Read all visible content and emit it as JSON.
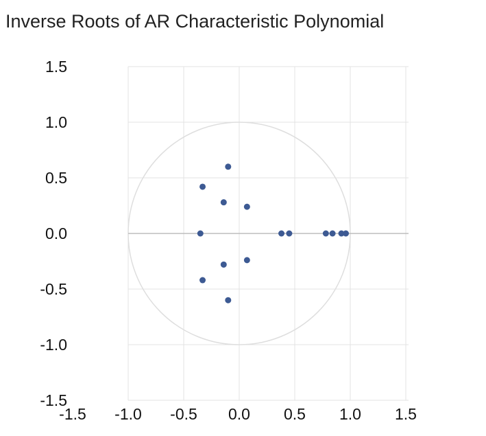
{
  "chart_data": {
    "type": "scatter",
    "title": "Inverse Roots of AR Characteristic Polynomial",
    "xlabel": "",
    "ylabel": "",
    "xlim": [
      -1.5,
      1.5
    ],
    "ylim": [
      -1.5,
      1.5
    ],
    "xticks": [
      "-1.5",
      "-1.0",
      "-0.5",
      "0.0",
      "0.5",
      "1.0",
      "1.5"
    ],
    "yticks": [
      "1.5",
      "1.0",
      "0.5",
      "0.0",
      "-0.5",
      "-1.0",
      "-1.5"
    ],
    "grid": true,
    "unit_circle": true,
    "marker_color": "#3d5a93",
    "points": [
      {
        "x": -0.1,
        "y": 0.6
      },
      {
        "x": -0.33,
        "y": 0.42
      },
      {
        "x": -0.14,
        "y": 0.28
      },
      {
        "x": 0.07,
        "y": 0.24
      },
      {
        "x": -0.35,
        "y": 0.0
      },
      {
        "x": 0.38,
        "y": 0.0
      },
      {
        "x": 0.45,
        "y": 0.0
      },
      {
        "x": 0.78,
        "y": 0.0
      },
      {
        "x": 0.84,
        "y": 0.0
      },
      {
        "x": 0.92,
        "y": 0.0
      },
      {
        "x": 0.96,
        "y": 0.0
      },
      {
        "x": -0.14,
        "y": -0.28
      },
      {
        "x": 0.07,
        "y": -0.24
      },
      {
        "x": -0.33,
        "y": -0.42
      },
      {
        "x": -0.1,
        "y": -0.6
      }
    ]
  }
}
